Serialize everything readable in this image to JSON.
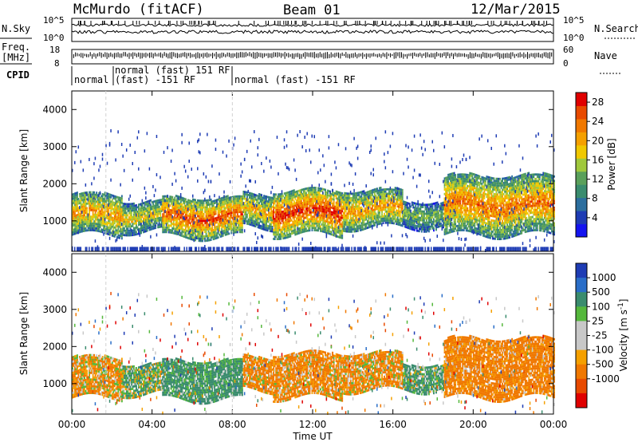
{
  "header": {
    "station": "McMurdo (fitACF)",
    "beam": "Beam 01",
    "date": "12/Mar/2015"
  },
  "strips": {
    "nsky_label": "N.Sky",
    "nsky_ticks": [
      "10^5",
      "10^0"
    ],
    "nsearch_label": "N.Search",
    "nsearch_ticks": [
      "10^5",
      "10^0"
    ],
    "freq_label_1": "Freq.",
    "freq_label_2": "[MHz]",
    "freq_ticks": [
      "18",
      "8"
    ],
    "nave_label": "Nave",
    "nave_ticks": [
      "60",
      "0"
    ],
    "cpid_label": "CPID",
    "cpid_segments": [
      "normal",
      "normal (fast) 151 RF",
      "(fast) -151 RF",
      "normal (fast) -151 RF"
    ]
  },
  "colors": {
    "power_scale": [
      "#1414f0",
      "#1e3cb4",
      "#2c6e9e",
      "#3a8c6e",
      "#5aa05a",
      "#a0c83c",
      "#f0c800",
      "#f5a000",
      "#f07800",
      "#e84a00",
      "#e00000"
    ],
    "velocity_scale": [
      "#1e3cb4",
      "#2a6ec8",
      "#3a8c6e",
      "#55b83c",
      "#c8c8c8",
      "#c8c8c8",
      "#f5a000",
      "#f07800",
      "#e84a00",
      "#e00000"
    ],
    "grid": "#d0d0d0",
    "noise_blue": "#1e3cb4"
  },
  "chart_data": [
    {
      "type": "heatmap",
      "name": "power",
      "ylabel": "Slant Range [km]",
      "yticks": [
        1000,
        2000,
        3000,
        4000
      ],
      "ylim": [
        180,
        4500
      ],
      "xlim": [
        0,
        24
      ],
      "colorbar_label": "Power [dB]",
      "colorbar_ticks": [
        4,
        8,
        12,
        16,
        20,
        24,
        28
      ],
      "colorbar_range": [
        0,
        30
      ],
      "bands": [
        {
          "t_start": 0.0,
          "t_end": 2.5,
          "r_low": 600,
          "r_high": 1700,
          "peak": 22
        },
        {
          "t_start": 2.5,
          "t_end": 4.5,
          "r_low": 700,
          "r_high": 1500,
          "peak": 18
        },
        {
          "t_start": 4.5,
          "t_end": 8.5,
          "r_low": 550,
          "r_high": 1600,
          "peak": 26
        },
        {
          "t_start": 8.5,
          "t_end": 10.0,
          "r_low": 800,
          "r_high": 1700,
          "peak": 20
        },
        {
          "t_start": 10.0,
          "t_end": 13.5,
          "r_low": 600,
          "r_high": 1800,
          "peak": 28
        },
        {
          "t_start": 13.5,
          "t_end": 16.5,
          "r_low": 800,
          "r_high": 1800,
          "peak": 22
        },
        {
          "t_start": 16.5,
          "t_end": 18.5,
          "r_low": 800,
          "r_high": 1500,
          "peak": 14
        },
        {
          "t_start": 18.5,
          "t_end": 24.0,
          "r_low": 600,
          "r_high": 2200,
          "peak": 24
        }
      ]
    },
    {
      "type": "heatmap",
      "name": "velocity",
      "ylabel": "Slant Range [km]",
      "xlabel": "Time UT",
      "xticks": [
        "00:00",
        "04:00",
        "08:00",
        "12:00",
        "16:00",
        "20:00",
        "00:00"
      ],
      "yticks": [
        1000,
        2000,
        3000,
        4000
      ],
      "ylim": [
        180,
        4500
      ],
      "xlim": [
        0,
        24
      ],
      "colorbar_label": "Velocity [m s^-1]",
      "colorbar_ticks": [
        "1000",
        "500",
        "100",
        "25",
        "-25",
        "-100",
        "-500",
        "-1000"
      ],
      "bands": [
        {
          "t_start": 0.0,
          "t_end": 2.5,
          "r_low": 600,
          "r_high": 1700,
          "velocity": -100
        },
        {
          "t_start": 2.5,
          "t_end": 4.5,
          "r_low": 600,
          "r_high": 1500,
          "velocity": 80
        },
        {
          "t_start": 4.5,
          "t_end": 8.5,
          "r_low": 550,
          "r_high": 1700,
          "velocity": 200
        },
        {
          "t_start": 8.5,
          "t_end": 13.0,
          "r_low": 650,
          "r_high": 1600,
          "velocity": -150
        },
        {
          "t_start": 13.0,
          "t_end": 16.5,
          "r_low": 800,
          "r_high": 1700,
          "velocity": -120
        },
        {
          "t_start": 16.5,
          "t_end": 18.5,
          "r_low": 900,
          "r_high": 1600,
          "velocity": 150
        },
        {
          "t_start": 18.5,
          "t_end": 24.0,
          "r_low": 600,
          "r_high": 2200,
          "velocity": -200
        }
      ]
    }
  ]
}
